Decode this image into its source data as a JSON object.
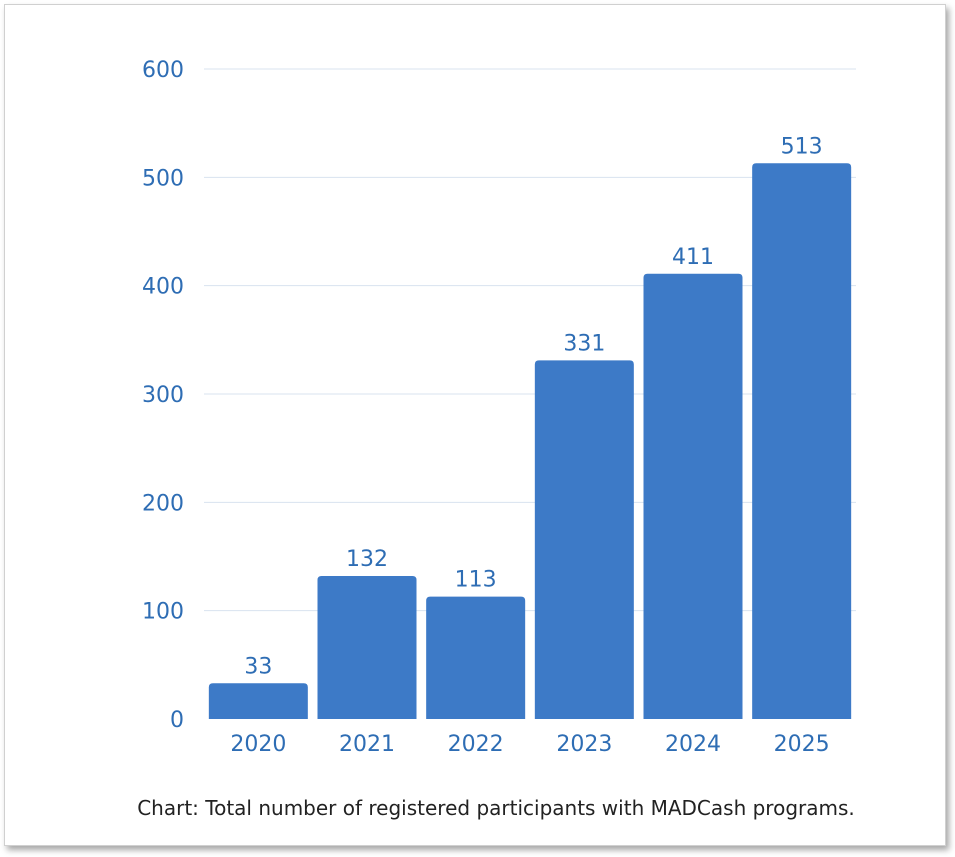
{
  "chart_data": {
    "type": "bar",
    "categories": [
      "2020",
      "2021",
      "2022",
      "2023",
      "2024",
      "2025"
    ],
    "values": [
      33,
      132,
      113,
      331,
      411,
      513
    ],
    "ylim": [
      0,
      600
    ],
    "yticks": [
      0,
      100,
      200,
      300,
      400,
      500,
      600
    ],
    "grid": true,
    "bar_color": "#3d7ac7",
    "text_color": "#2e6db4",
    "gridline_color": "#d8e3ef"
  },
  "caption": "Chart: Total number of registered participants with MADCash programs."
}
